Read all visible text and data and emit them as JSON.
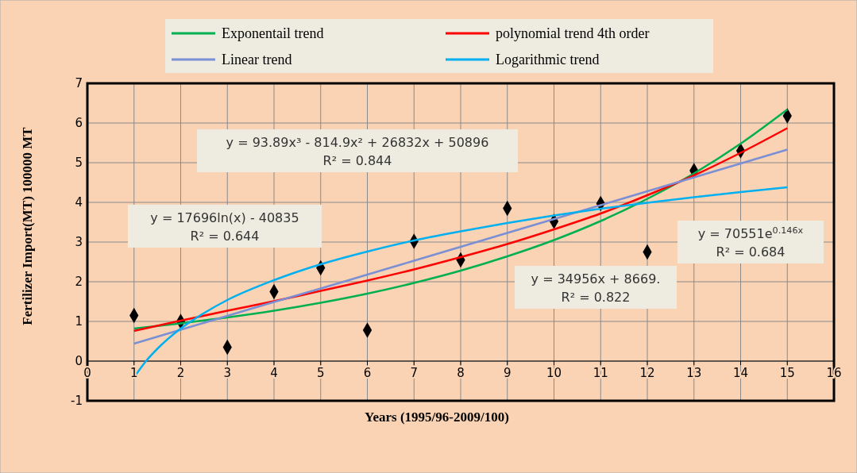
{
  "chart_data": {
    "type": "scatter",
    "xlabel": "Years (1995/96-2009/100)",
    "ylabel": "Fertilizer Import(MT) 100000 MT",
    "xlim": [
      0,
      16
    ],
    "xticks": [
      0,
      1,
      2,
      3,
      4,
      5,
      6,
      7,
      8,
      9,
      10,
      11,
      12,
      13,
      14,
      15,
      16
    ],
    "ylim": [
      -1,
      7
    ],
    "yticks": [
      -1,
      0,
      1,
      2,
      3,
      4,
      5,
      6,
      7
    ],
    "grid": true,
    "legend": "top",
    "series": [
      {
        "marker": "diamond",
        "color": "#000000",
        "x": [
          1,
          2,
          3,
          4,
          5,
          6,
          7,
          8,
          9,
          10,
          11,
          12,
          13,
          14,
          15
        ],
        "values": [
          1.15,
          1.0,
          0.35,
          1.75,
          2.35,
          0.78,
          3.02,
          2.55,
          3.85,
          3.52,
          3.97,
          2.75,
          4.8,
          5.3,
          6.18
        ]
      },
      {
        "type": "line",
        "name": "Exponentail trend",
        "color": "#00b050",
        "x": [
          1,
          2,
          3,
          4,
          5,
          6,
          7,
          8,
          9,
          10,
          11,
          12,
          13,
          14,
          15
        ],
        "values": [
          0.82,
          0.95,
          1.1,
          1.27,
          1.47,
          1.7,
          1.97,
          2.28,
          2.64,
          3.05,
          3.53,
          4.09,
          4.73,
          5.48,
          6.34
        ]
      },
      {
        "type": "line",
        "name": "polynomial trend 4th order",
        "color": "#ff0000",
        "x": [
          1,
          2,
          3,
          4,
          5,
          6,
          7,
          8,
          9,
          10,
          11,
          12,
          13,
          14,
          15
        ],
        "values": [
          0.76,
          1.02,
          1.27,
          1.51,
          1.77,
          2.03,
          2.31,
          2.62,
          2.95,
          3.32,
          3.72,
          4.18,
          4.68,
          5.25,
          5.87
        ]
      },
      {
        "type": "line",
        "name": "Linear trend",
        "color": "#7b8fd4",
        "x": [
          1,
          2,
          3,
          4,
          5,
          6,
          7,
          8,
          9,
          10,
          11,
          12,
          13,
          14,
          15
        ],
        "values": [
          0.44,
          0.79,
          1.14,
          1.49,
          1.83,
          2.18,
          2.53,
          2.88,
          3.23,
          3.58,
          3.93,
          4.28,
          4.63,
          4.98,
          5.33
        ]
      },
      {
        "type": "line",
        "name": "Logarithmic trend",
        "color": "#00b0f0",
        "x": [
          1,
          1.25,
          1.5,
          2,
          2.5,
          3,
          4,
          5,
          6,
          7,
          8,
          9,
          10,
          11,
          12,
          13,
          14,
          15
        ],
        "values": [
          -0.41,
          -0.01,
          0.31,
          0.82,
          1.21,
          1.54,
          2.04,
          2.44,
          2.76,
          3.04,
          3.27,
          3.48,
          3.67,
          3.84,
          3.99,
          4.13,
          4.26,
          4.38
        ]
      }
    ],
    "annotations": [
      "y = 93.89x³ - 814.9x² + 26832x + 50896\nR² = 0.844",
      "y = 17696ln(x) - 40835\nR² = 0.644",
      "y = 70551e$^{0.146x}$\nR² = 0.684",
      "y = 34956x + 8669.\nR² = 0.822"
    ]
  }
}
